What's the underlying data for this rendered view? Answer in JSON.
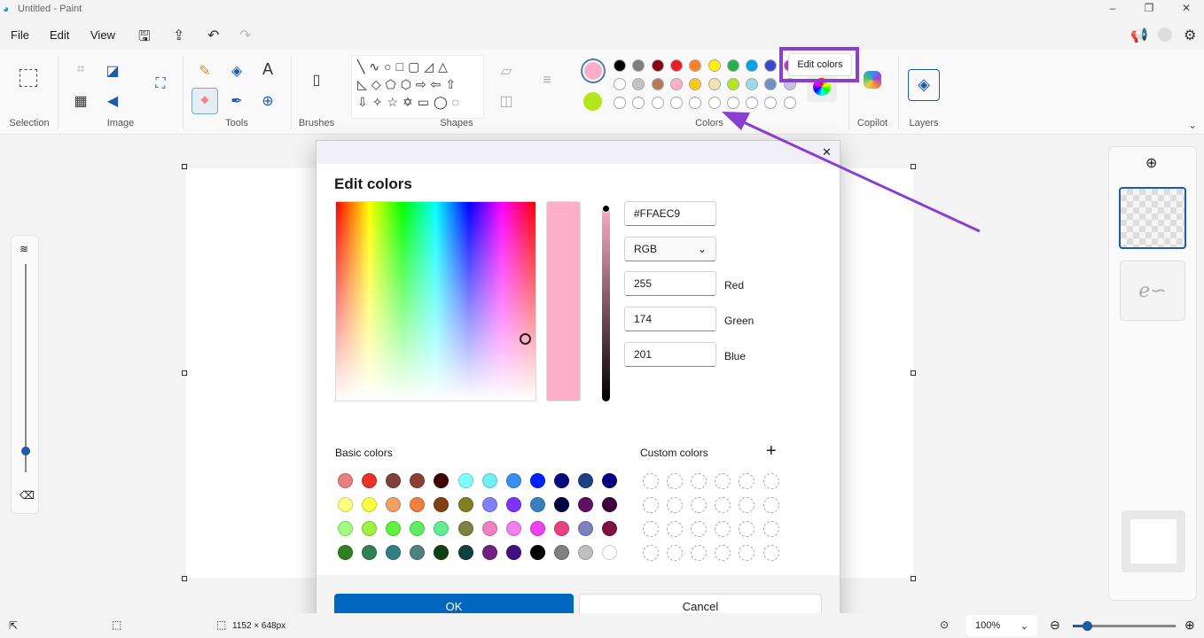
{
  "window": {
    "title": "Untitled - Paint",
    "minimize": "–",
    "restore": "❐",
    "close": "✕"
  },
  "menu": {
    "file": "File",
    "edit": "Edit",
    "view": "View"
  },
  "ribbon": {
    "selection": "Selection",
    "image": "Image",
    "tools": "Tools",
    "brushes": "Brushes",
    "shapes": "Shapes",
    "colors": "Colors",
    "copilot": "Copilot",
    "layers": "Layers",
    "edit_colors_tooltip": "Edit colors"
  },
  "palette": {
    "color1": "#ffaec9",
    "color2": "#b5e61d",
    "row1": [
      "#000000",
      "#7f7f7f",
      "#880015",
      "#ed1c24",
      "#ff7f27",
      "#fff200",
      "#22b14c",
      "#00a2e8",
      "#3f48cc",
      "#a349a4"
    ],
    "row2": [
      "#ffffff",
      "#c3c3c3",
      "#b97a57",
      "#ffaec9",
      "#ffc90e",
      "#efe4b0",
      "#b5e61d",
      "#99d9ea",
      "#7092be",
      "#c8bfe7"
    ],
    "row3": [
      "",
      "",
      "",
      "",
      "",
      "",
      "",
      "",
      "",
      ""
    ]
  },
  "accent": "#8a3fd1",
  "dialog": {
    "title": "Edit colors",
    "close": "✕",
    "hex": "#FFAEC9",
    "mode": "RGB",
    "red": "255",
    "green": "174",
    "blue": "201",
    "red_label": "Red",
    "green_label": "Green",
    "blue_label": "Blue",
    "preview_color": "#ffaec9",
    "basic_label": "Basic colors",
    "custom_label": "Custom colors",
    "add": "+",
    "ok": "OK",
    "cancel": "Cancel",
    "basic_colors": [
      [
        "#e88080",
        "#e8332a",
        "#804040",
        "#8b4035",
        "#400000",
        "#80ffff",
        "#70f0f8",
        "#3a8ef0",
        "#0022ff",
        "#0a0a80",
        "#1e4080",
        "#000080"
      ],
      [
        "#ffff80",
        "#ffff40",
        "#f0a060",
        "#f08040",
        "#804010",
        "#808020",
        "#8080ff",
        "#8030ff",
        "#3a80c0",
        "#000040",
        "#601060",
        "#400040"
      ],
      [
        "#a0ff80",
        "#a0f040",
        "#60f040",
        "#60ee60",
        "#60ee90",
        "#808040",
        "#f080c0",
        "#f080f0",
        "#f040f0",
        "#e84080",
        "#8080c0",
        "#801040"
      ],
      [
        "#308020",
        "#308050",
        "#308080",
        "#508080",
        "#104010",
        "#104040",
        "#702080",
        "#401080",
        "#000000",
        "#808080",
        "#c0c0c0",
        "#ffffff"
      ]
    ]
  },
  "status": {
    "canvas_size": "1152 × 648px",
    "zoom": "100%",
    "zoom_level": 100
  }
}
